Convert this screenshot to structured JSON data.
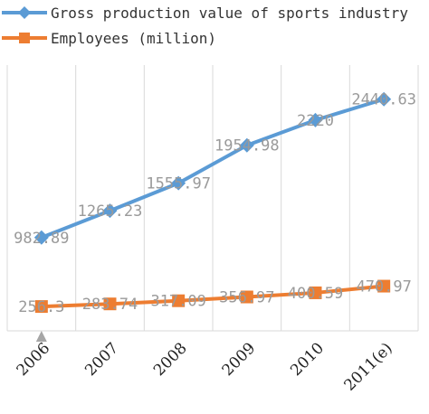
{
  "chart_data": {
    "type": "line",
    "categories": [
      "2006",
      "2007",
      "2008",
      "2009",
      "2010",
      "2011(e)"
    ],
    "series": [
      {
        "name": "Gross production value of sports industry",
        "values": [
          982.89,
          1265.23,
          1555.97,
          1954.98,
          2220,
          2440.63
        ],
        "labels": [
          "982.89",
          "1265.23",
          "1555.97",
          "1954.98",
          "2220",
          "2440.63"
        ],
        "color": "#5b9bd5",
        "marker": "diamond"
      },
      {
        "name": "Employees (million)",
        "values": [
          256.3,
          283.74,
          317.09,
          356.97,
          400.59,
          470.97
        ],
        "labels": [
          "256.3",
          "283.74",
          "317.09",
          "356.97",
          "400.59",
          "470.97"
        ],
        "color": "#ed7d31",
        "marker": "square"
      }
    ],
    "ylim": [
      0,
      2800
    ],
    "grid": "vertical",
    "legend_position": "top-left"
  }
}
